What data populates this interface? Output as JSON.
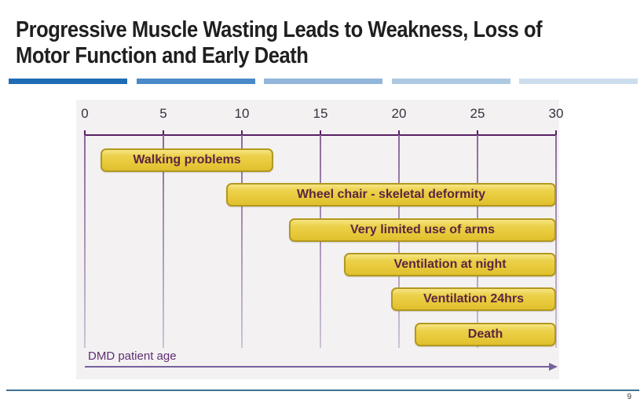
{
  "slide": {
    "title_line1": "Progressive Muscle Wasting Leads to Weakness, Loss of",
    "title_line2": "Motor Function and Early Death",
    "page_number": "9",
    "accent_segment_colors": [
      "#1f6cb5",
      "#4a89c8",
      "#92b5da",
      "#aecae2",
      "#ccddee"
    ]
  },
  "chart_data": {
    "type": "bar",
    "subtype": "horizontal-gantt-timeline",
    "title": "",
    "xlabel": "DMD patient age",
    "ylabel": "",
    "axis": {
      "min": 0,
      "max": 30,
      "ticks": [
        0,
        5,
        10,
        15,
        20,
        25,
        30
      ],
      "grid": true,
      "label": "DMD patient age"
    },
    "bars": [
      {
        "label": "Walking problems",
        "start": 1,
        "end": 12
      },
      {
        "label": "Wheel chair - skeletal deformity",
        "start": 9,
        "end": 30
      },
      {
        "label": "Very limited use of arms",
        "start": 13,
        "end": 30
      },
      {
        "label": "Ventilation at night",
        "start": 16.5,
        "end": 30
      },
      {
        "label": "Ventilation 24hrs",
        "start": 19.5,
        "end": 30
      },
      {
        "label": "Death",
        "start": 21,
        "end": 30
      }
    ],
    "colors": {
      "panel_bg": "#f3f1f2",
      "axis_line": "#581f63",
      "gridline_top": "#8a689b",
      "gridline_bottom": "#cdc2d5",
      "tick_label": "#3a313f",
      "bar_fill": "#e7c93a",
      "bar_fill_light": "#f6e584",
      "bar_border": "#b2981f",
      "bar_text": "#5c2540",
      "age_label": "#5f2f72",
      "arrow": "#76629c"
    }
  }
}
